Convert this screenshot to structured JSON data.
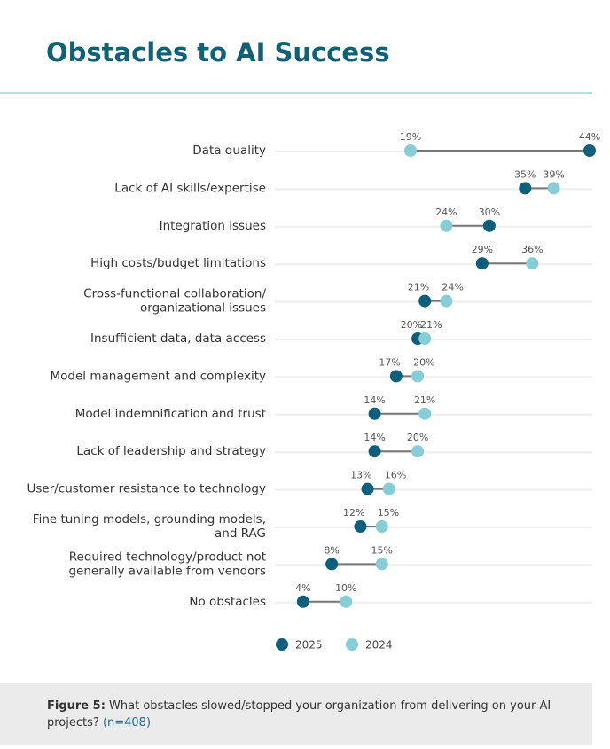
{
  "chart_data": {
    "type": "dumbbell",
    "title": "Obstacles to AI Success",
    "categories": [
      [
        "Data quality"
      ],
      [
        "Lack of AI skills/expertise"
      ],
      [
        "Integration issues"
      ],
      [
        "High costs/budget limitations"
      ],
      [
        "Cross-functional collaboration/",
        "organizational issues"
      ],
      [
        "Insufficient data, data access"
      ],
      [
        "Model management and complexity"
      ],
      [
        "Model indemnification and trust"
      ],
      [
        "Lack of leadership and strategy"
      ],
      [
        "User/customer resistance to technology"
      ],
      [
        "Fine tuning models, grounding models,",
        "and RAG"
      ],
      [
        "Required technology/product not",
        "generally available from vendors"
      ],
      [
        "No obstacles"
      ]
    ],
    "series": [
      {
        "name": "2025",
        "color": "#0d5f7c",
        "values": [
          44,
          35,
          30,
          29,
          21,
          20,
          17,
          14,
          14,
          13,
          12,
          8,
          4
        ],
        "value_labels": [
          "44%",
          "35%",
          "30%",
          "29%",
          "21%",
          "20%",
          "17%",
          "14%",
          "14%",
          "13%",
          "12%",
          "8%",
          "4%"
        ]
      },
      {
        "name": "2024",
        "color": "#86cdd6",
        "values": [
          19,
          39,
          24,
          36,
          24,
          21,
          20,
          21,
          20,
          16,
          15,
          15,
          10
        ],
        "value_labels": [
          "19%",
          "39%",
          "24%",
          "36%",
          "24%",
          "21%",
          "20%",
          "21%",
          "20%",
          "16%",
          "15%",
          "15%",
          "10%"
        ]
      }
    ],
    "xlim": [
      0,
      44
    ],
    "caption": {
      "label": "Figure 5:",
      "text": "What obstacles slowed/stopped your organization from delivering on your AI projects?",
      "note": "(n=408)"
    }
  }
}
